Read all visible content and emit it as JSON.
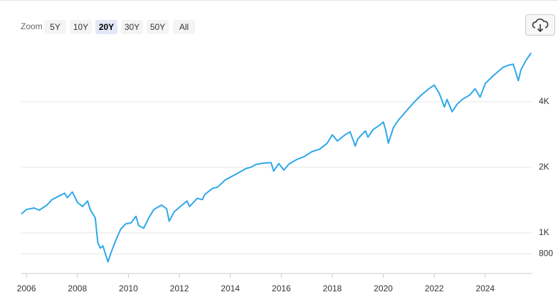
{
  "zoom": {
    "label": "Zoom",
    "options": [
      "5Y",
      "10Y",
      "20Y",
      "30Y",
      "50Y",
      "All"
    ],
    "selected": 2
  },
  "chart_data": {
    "type": "line",
    "log_scale": true,
    "grid": true,
    "xlim": [
      2005.8,
      2025.85
    ],
    "ylim": [
      650,
      7300
    ],
    "xticks": [
      2006,
      2008,
      2010,
      2012,
      2014,
      2016,
      2018,
      2020,
      2022,
      2024
    ],
    "yticks": [
      800,
      {
        "value": 1000,
        "label": "1K"
      },
      {
        "value": 2000,
        "label": "2K"
      },
      {
        "value": 4000,
        "label": "4K"
      }
    ],
    "series": [
      {
        "color": "#2ea8ea",
        "x": [
          2005.8,
          2006.0,
          2006.3,
          2006.5,
          2006.8,
          2007.0,
          2007.3,
          2007.5,
          2007.6,
          2007.8,
          2008.0,
          2008.2,
          2008.4,
          2008.5,
          2008.7,
          2008.8,
          2008.9,
          2009.0,
          2009.2,
          2009.3,
          2009.5,
          2009.7,
          2009.9,
          2010.1,
          2010.3,
          2010.4,
          2010.6,
          2010.8,
          2011.0,
          2011.3,
          2011.5,
          2011.6,
          2011.8,
          2012.0,
          2012.3,
          2012.4,
          2012.7,
          2012.9,
          2013.0,
          2013.3,
          2013.5,
          2013.8,
          2014.0,
          2014.3,
          2014.6,
          2014.8,
          2015.0,
          2015.3,
          2015.6,
          2015.7,
          2015.9,
          2016.1,
          2016.3,
          2016.6,
          2016.9,
          2017.2,
          2017.5,
          2017.8,
          2018.0,
          2018.2,
          2018.5,
          2018.7,
          2018.9,
          2019.0,
          2019.3,
          2019.4,
          2019.6,
          2019.9,
          2020.0,
          2020.1,
          2020.2,
          2020.4,
          2020.6,
          2020.9,
          2021.2,
          2021.5,
          2021.8,
          2022.0,
          2022.2,
          2022.4,
          2022.5,
          2022.7,
          2022.9,
          2023.1,
          2023.4,
          2023.6,
          2023.8,
          2024.0,
          2024.3,
          2024.5,
          2024.7,
          2024.9,
          2025.1,
          2025.3,
          2025.4,
          2025.6,
          2025.8
        ],
        "values": [
          1220,
          1280,
          1300,
          1270,
          1340,
          1420,
          1480,
          1520,
          1450,
          1540,
          1380,
          1320,
          1400,
          1280,
          1170,
          900,
          850,
          870,
          735,
          800,
          920,
          1040,
          1100,
          1110,
          1190,
          1080,
          1050,
          1170,
          1280,
          1340,
          1290,
          1130,
          1250,
          1310,
          1400,
          1320,
          1440,
          1420,
          1500,
          1600,
          1620,
          1750,
          1800,
          1880,
          1970,
          2000,
          2060,
          2090,
          2100,
          1920,
          2080,
          1940,
          2070,
          2170,
          2240,
          2360,
          2420,
          2580,
          2820,
          2640,
          2820,
          2910,
          2500,
          2700,
          2940,
          2750,
          2980,
          3150,
          3230,
          2950,
          2580,
          3050,
          3300,
          3620,
          3970,
          4300,
          4600,
          4770,
          4370,
          3780,
          4100,
          3600,
          3900,
          4100,
          4300,
          4590,
          4200,
          4850,
          5250,
          5500,
          5760,
          5880,
          5950,
          5000,
          5600,
          6200,
          6700
        ]
      }
    ]
  }
}
